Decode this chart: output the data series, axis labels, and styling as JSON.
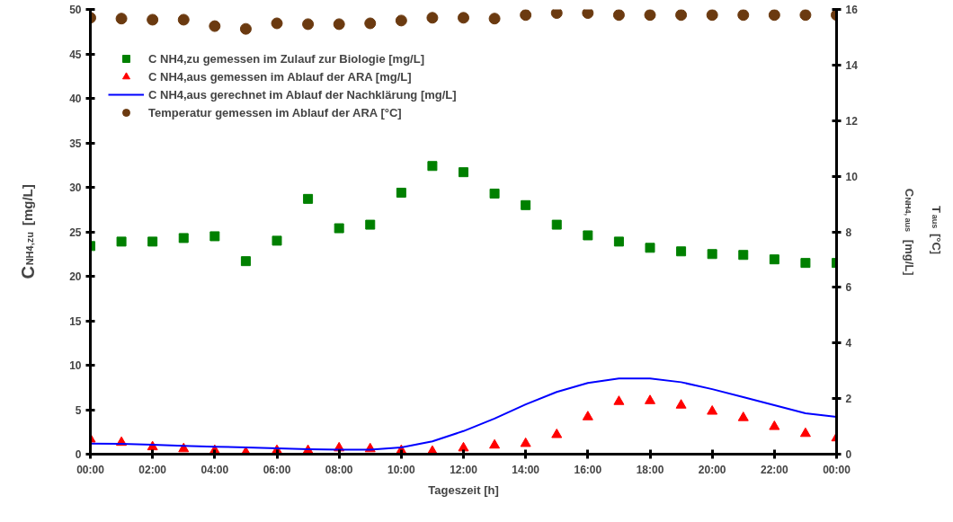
{
  "chart_data": {
    "type": "scatter",
    "xlabel": "Tageszeit [h]",
    "ylabel": "C$_{NH4,zu}$ [mg/L]",
    "y2label": "C$_{NH4, aus}$ [mg/L]\nT$_{aus}$ [°C]",
    "x": [
      0,
      1,
      2,
      3,
      4,
      5,
      6,
      7,
      8,
      9,
      10,
      11,
      12,
      13,
      14,
      15,
      16,
      17,
      18,
      19,
      20,
      21,
      22,
      23,
      24
    ],
    "xlim": [
      0,
      24
    ],
    "xticks": [
      {
        "value": 0,
        "label": "00:00"
      },
      {
        "value": 2,
        "label": "02:00"
      },
      {
        "value": 4,
        "label": "04:00"
      },
      {
        "value": 6,
        "label": "06:00"
      },
      {
        "value": 8,
        "label": "08:00"
      },
      {
        "value": 10,
        "label": "10:00"
      },
      {
        "value": 12,
        "label": "12:00"
      },
      {
        "value": 14,
        "label": "14:00"
      },
      {
        "value": 16,
        "label": "16:00"
      },
      {
        "value": 18,
        "label": "18:00"
      },
      {
        "value": 20,
        "label": "20:00"
      },
      {
        "value": 22,
        "label": "22:00"
      },
      {
        "value": 24,
        "label": "00:00"
      }
    ],
    "ylim": [
      0,
      50
    ],
    "yticks": [
      0,
      5,
      10,
      15,
      20,
      25,
      30,
      35,
      40,
      45,
      50
    ],
    "y2lim": [
      0,
      16
    ],
    "y2ticks": [
      0,
      2,
      4,
      6,
      8,
      10,
      12,
      14,
      16
    ],
    "grid": false,
    "legend": "top left",
    "series": [
      {
        "name": "C NH4,zu gemessen im Zulauf zur Biologie [mg/L]",
        "marker": "square",
        "color": "#008000",
        "values": [
          23.4,
          23.9,
          23.9,
          24.3,
          24.5,
          21.7,
          24.0,
          28.7,
          25.4,
          25.8,
          29.4,
          32.4,
          31.7,
          29.3,
          28.0,
          25.8,
          24.6,
          23.9,
          23.2,
          22.8,
          22.5,
          22.4,
          21.9,
          21.5,
          21.5
        ]
      },
      {
        "name": "C NH4,aus gemessen im Ablauf der ARA [mg/L]",
        "marker": "triangle",
        "axis": "y2",
        "color": "#ff0000",
        "values": [
          0.54,
          0.42,
          0.26,
          0.19,
          0.13,
          0.06,
          0.13,
          0.13,
          0.22,
          0.19,
          0.13,
          0.1,
          0.22,
          0.32,
          0.38,
          0.7,
          1.34,
          1.89,
          1.92,
          1.76,
          1.54,
          1.31,
          0.99,
          0.74,
          0.58
        ]
      },
      {
        "name": "C NH4,aus gerechnet im Ablauf der Nachklärung [mg/L]",
        "type": "line",
        "line_style": "solid",
        "axis": "y2",
        "color": "#0000ff",
        "values": [
          0.38,
          0.37,
          0.34,
          0.3,
          0.27,
          0.24,
          0.21,
          0.18,
          0.16,
          0.16,
          0.24,
          0.46,
          0.83,
          1.28,
          1.79,
          2.24,
          2.56,
          2.72,
          2.72,
          2.59,
          2.34,
          2.05,
          1.76,
          1.47,
          1.34
        ]
      },
      {
        "name": "Temperatur gemessen im Ablauf der ARA [°C]",
        "marker": "circle",
        "axis": "y2",
        "color": "#6b3a10",
        "values": [
          15.7,
          15.67,
          15.63,
          15.63,
          15.4,
          15.3,
          15.5,
          15.47,
          15.47,
          15.5,
          15.6,
          15.7,
          15.7,
          15.67,
          15.8,
          15.87,
          15.87,
          15.8,
          15.8,
          15.8,
          15.8,
          15.8,
          15.8,
          15.8,
          15.8
        ]
      }
    ]
  }
}
